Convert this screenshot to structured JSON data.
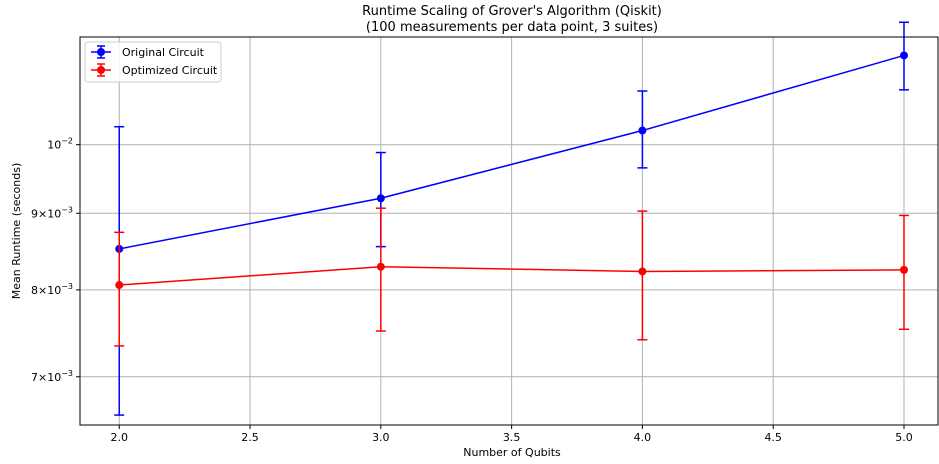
{
  "chart_data": {
    "type": "line",
    "title": "Runtime Scaling of Grover's Algorithm (Qiskit)",
    "subtitle": "(100 measurements per data point, 3 suites)",
    "xlabel": "Number of Qubits",
    "ylabel": "Mean Runtime (seconds)",
    "y_scale": "log",
    "xlim": [
      1.85,
      5.13
    ],
    "ylim": [
      0.0065,
      0.0118
    ],
    "x_ticks": [
      2.0,
      2.5,
      3.0,
      3.5,
      4.0,
      4.5,
      5.0
    ],
    "x_tick_labels": [
      "2.0",
      "2.5",
      "3.0",
      "3.5",
      "4.0",
      "4.5",
      "5.0"
    ],
    "y_ticks": [
      {
        "value": 0.007,
        "mantissa": "7",
        "exponent": "−3"
      },
      {
        "value": 0.008,
        "mantissa": "8",
        "exponent": "−3"
      },
      {
        "value": 0.009,
        "mantissa": "9",
        "exponent": "−3"
      },
      {
        "value": 0.01,
        "mantissa": "",
        "exponent": "−2"
      }
    ],
    "y_tick_base": "10",
    "y_tick_times": "×",
    "grid": true,
    "legend_position": "top-left",
    "series": [
      {
        "name": "Original Circuit",
        "color": "#0000ff",
        "x": [
          2,
          3,
          4,
          5
        ],
        "y": [
          0.00852,
          0.00921,
          0.01022,
          0.01147
        ],
        "err_low": [
          0.0066,
          0.00855,
          0.00965,
          0.01088
        ],
        "err_high": [
          0.01028,
          0.00988,
          0.01086,
          0.01207
        ]
      },
      {
        "name": "Optimized Circuit",
        "color": "#ff0000",
        "x": [
          2,
          3,
          4,
          5
        ],
        "y": [
          0.00806,
          0.00829,
          0.00823,
          0.00825
        ],
        "err_low": [
          0.00734,
          0.00751,
          0.00741,
          0.00753
        ],
        "err_high": [
          0.00874,
          0.00907,
          0.00903,
          0.00897
        ]
      }
    ]
  }
}
